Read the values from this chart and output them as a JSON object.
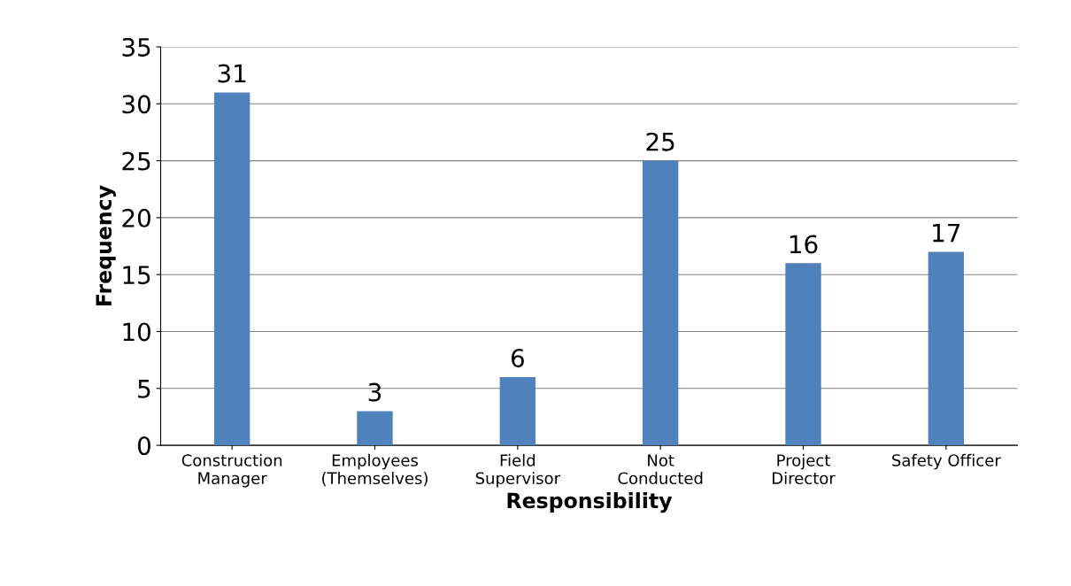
{
  "chart_data": {
    "type": "bar",
    "xlabel": "Responsibility",
    "ylabel": "Frequency",
    "categories": [
      "Construction\nManager",
      "Employees\n(Themselves)",
      "Field\nSupervisor",
      "Not\nConducted",
      "Project\nDirector",
      "Safety Officer"
    ],
    "values": [
      31,
      3,
      6,
      25,
      16,
      17
    ],
    "color": "#4f81bd",
    "data_labels": true,
    "ylim": [
      0,
      35
    ],
    "yticks": [
      0,
      5,
      10,
      15,
      20,
      25,
      30,
      35
    ],
    "grid": "y",
    "legend": false
  }
}
